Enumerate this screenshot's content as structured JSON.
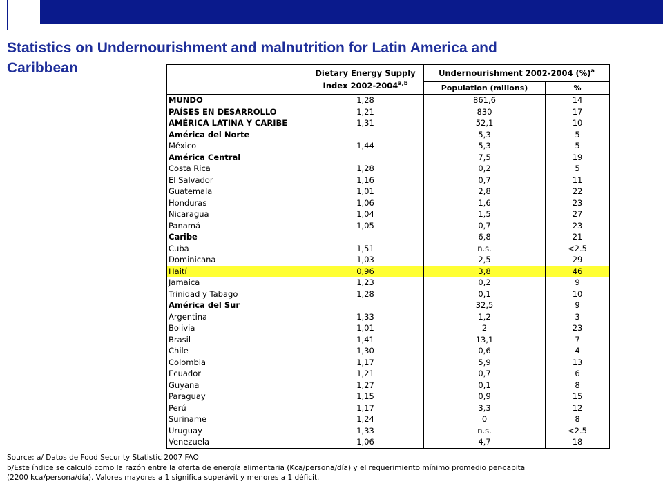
{
  "title": {
    "line1": "Statistics on Undernourishment and malnutrition for Latin America and",
    "line2": "Caribbean"
  },
  "table": {
    "header": {
      "col_des": "Dietary Energy Supply",
      "col_des_sub": "Index 2002-2004",
      "col_des_sup": "a,b",
      "col_under": "Undernourishment 2002-2004 (%)",
      "col_under_sup": "a",
      "col_pop": "Population (millons)",
      "col_pct": "%"
    },
    "rows": [
      {
        "name": "MUNDO",
        "des": "1,28",
        "pop": "861,6",
        "pct": "14",
        "region": true
      },
      {
        "name": "PAÍSES EN DESARROLLO",
        "des": "1,21",
        "pop": "830",
        "pct": "17",
        "region": true
      },
      {
        "name": "AMÉRICA LATINA Y CARIBE",
        "des": "1,31",
        "pop": "52,1",
        "pct": "10",
        "region": true
      },
      {
        "name": "América del Norte",
        "des": "",
        "pop": "5,3",
        "pct": "5",
        "region": true
      },
      {
        "name": "México",
        "des": "1,44",
        "pop": "5,3",
        "pct": "5"
      },
      {
        "name": "América Central",
        "des": "",
        "pop": "7,5",
        "pct": "19",
        "region": true
      },
      {
        "name": "Costa Rica",
        "des": "1,28",
        "pop": "0,2",
        "pct": "5"
      },
      {
        "name": "El Salvador",
        "des": "1,16",
        "pop": "0,7",
        "pct": "11"
      },
      {
        "name": "Guatemala",
        "des": "1,01",
        "pop": "2,8",
        "pct": "22"
      },
      {
        "name": "Honduras",
        "des": "1,06",
        "pop": "1,6",
        "pct": "23"
      },
      {
        "name": "Nicaragua",
        "des": "1,04",
        "pop": "1,5",
        "pct": "27"
      },
      {
        "name": "Panamá",
        "des": "1,05",
        "pop": "0,7",
        "pct": "23"
      },
      {
        "name": "Caribe",
        "des": "",
        "pop": "6,8",
        "pct": "21",
        "region": true
      },
      {
        "name": "Cuba",
        "des": "1,51",
        "pop": "n.s.",
        "pct": "<2.5"
      },
      {
        "name": "Dominicana",
        "des": "1,03",
        "pop": "2,5",
        "pct": "29"
      },
      {
        "name": "Haití",
        "des": "0,96",
        "pop": "3,8",
        "pct": "46",
        "highlight": true
      },
      {
        "name": "Jamaica",
        "des": "1,23",
        "pop": "0,2",
        "pct": "9"
      },
      {
        "name": "Trinidad y Tabago",
        "des": "1,28",
        "pop": "0,1",
        "pct": "10"
      },
      {
        "name": "América del Sur",
        "des": "",
        "pop": "32,5",
        "pct": "9",
        "region": true
      },
      {
        "name": "Argentina",
        "des": "1,33",
        "pop": "1,2",
        "pct": "3"
      },
      {
        "name": "Bolivia",
        "des": "1,01",
        "pop": "2",
        "pct": "23"
      },
      {
        "name": "Brasil",
        "des": "1,41",
        "pop": "13,1",
        "pct": "7"
      },
      {
        "name": "Chile",
        "des": "1,30",
        "pop": "0,6",
        "pct": "4"
      },
      {
        "name": "Colombia",
        "des": "1,17",
        "pop": "5,9",
        "pct": "13"
      },
      {
        "name": "Ecuador",
        "des": "1,21",
        "pop": "0,7",
        "pct": "6"
      },
      {
        "name": "Guyana",
        "des": "1,27",
        "pop": "0,1",
        "pct": "8"
      },
      {
        "name": "Paraguay",
        "des": "1,15",
        "pop": "0,9",
        "pct": "15"
      },
      {
        "name": "Perú",
        "des": "1,17",
        "pop": "3,3",
        "pct": "12"
      },
      {
        "name": "Suriname",
        "des": "1,24",
        "pop": "0",
        "pct": "8"
      },
      {
        "name": "Uruguay",
        "des": "1,33",
        "pop": "n.s.",
        "pct": "<2.5"
      },
      {
        "name": "Venezuela",
        "des": "1,06",
        "pop": "4,7",
        "pct": "18"
      }
    ]
  },
  "footnotes": {
    "source": "Source:  a/ Datos de Food Security Statistic 2007 FAO",
    "note_b_line1": "b/Este índice se calculó como la razón entre la oferta de energía alimentaria (Kca/persona/día) y el requerimiento mínimo promedio per-capita",
    "note_b_line2": "(2200 kca/persona/día). Valores mayores a 1 significa superávit y menores a 1 déficit."
  },
  "colors": {
    "header_bar": "#0a1a8c",
    "title_text": "#1f2f9a",
    "highlight_row": "#ffff33"
  }
}
